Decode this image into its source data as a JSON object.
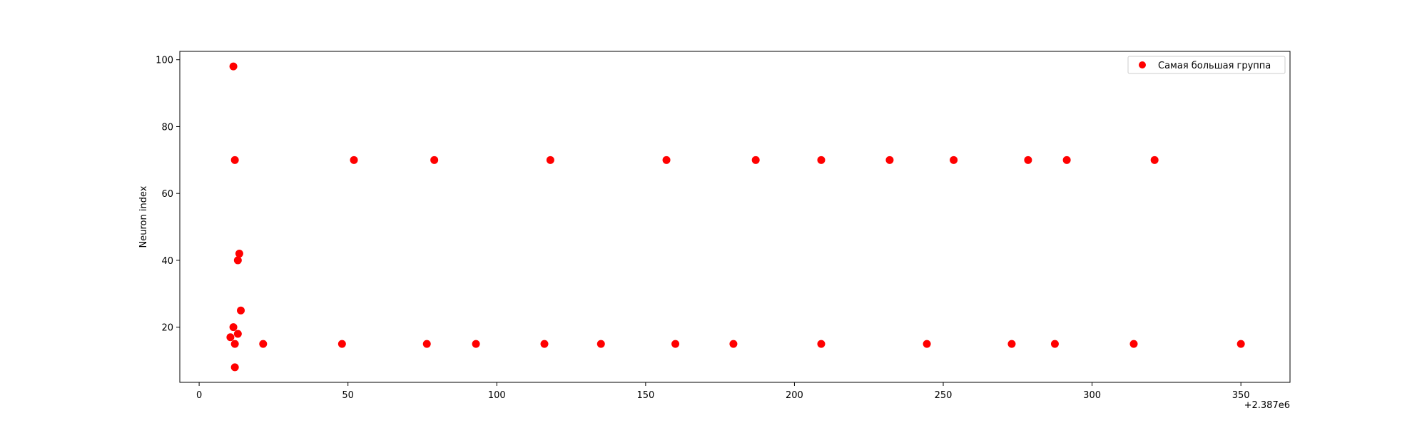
{
  "chart_data": {
    "type": "scatter",
    "title": "",
    "xlabel": "",
    "ylabel": "Neuron index",
    "x_offset_label": "+2.387e6",
    "xlim": [
      -6.5,
      366.5
    ],
    "ylim": [
      3.5,
      102.5
    ],
    "x_ticks": [
      0,
      50,
      100,
      150,
      200,
      250,
      300,
      350
    ],
    "y_ticks": [
      20,
      40,
      60,
      80,
      100
    ],
    "grid": false,
    "legend_position": "top-right",
    "colors": {
      "series": "#ff0000",
      "axes": "#000000",
      "legend_border": "#cccccc"
    },
    "series": [
      {
        "name": "Самая большая группа",
        "points": [
          {
            "x": 11.5,
            "y": 98
          },
          {
            "x": 12,
            "y": 70
          },
          {
            "x": 52,
            "y": 70
          },
          {
            "x": 79,
            "y": 70
          },
          {
            "x": 118,
            "y": 70
          },
          {
            "x": 157,
            "y": 70
          },
          {
            "x": 187,
            "y": 70
          },
          {
            "x": 209,
            "y": 70
          },
          {
            "x": 232,
            "y": 70
          },
          {
            "x": 253.5,
            "y": 70
          },
          {
            "x": 278.5,
            "y": 70
          },
          {
            "x": 291.5,
            "y": 70
          },
          {
            "x": 321,
            "y": 70
          },
          {
            "x": 13.5,
            "y": 42
          },
          {
            "x": 13,
            "y": 40
          },
          {
            "x": 14,
            "y": 25
          },
          {
            "x": 11.5,
            "y": 20
          },
          {
            "x": 13,
            "y": 18
          },
          {
            "x": 10.5,
            "y": 17
          },
          {
            "x": 12,
            "y": 15
          },
          {
            "x": 21.5,
            "y": 15
          },
          {
            "x": 48,
            "y": 15
          },
          {
            "x": 76.5,
            "y": 15
          },
          {
            "x": 93,
            "y": 15
          },
          {
            "x": 116,
            "y": 15
          },
          {
            "x": 135,
            "y": 15
          },
          {
            "x": 160,
            "y": 15
          },
          {
            "x": 179.5,
            "y": 15
          },
          {
            "x": 209,
            "y": 15
          },
          {
            "x": 244.5,
            "y": 15
          },
          {
            "x": 273,
            "y": 15
          },
          {
            "x": 287.5,
            "y": 15
          },
          {
            "x": 314,
            "y": 15
          },
          {
            "x": 350,
            "y": 15
          },
          {
            "x": 12,
            "y": 8
          }
        ]
      }
    ]
  }
}
